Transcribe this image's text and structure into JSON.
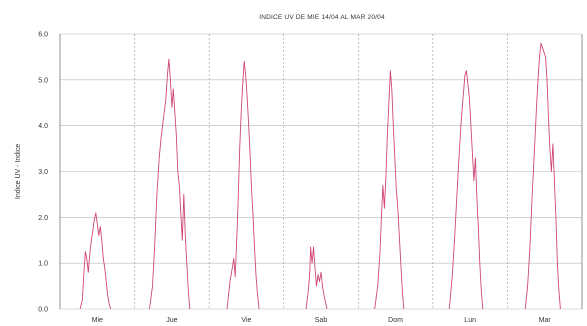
{
  "chart_data": {
    "type": "line",
    "title": "INDICE UV DE MIE 14/04 AL MAR 20/04",
    "ylabel": "Indice UV - Indice",
    "xlabel": "",
    "ylim": [
      0,
      6
    ],
    "yticks": [
      "0.0",
      "1.0",
      "2.0",
      "3.0",
      "4.0",
      "5.0",
      "6.0"
    ],
    "categories": [
      "Mie",
      "Jue",
      "Vie",
      "Sab",
      "Dom",
      "Lun",
      "Mar"
    ],
    "grid": true,
    "series_color": "#d0457a",
    "series": [
      {
        "values_by_day": [
          [
            [
              0.27,
              0
            ],
            [
              0.3,
              0.2
            ],
            [
              0.32,
              0.8
            ],
            [
              0.34,
              1.25
            ],
            [
              0.36,
              1.1
            ],
            [
              0.38,
              0.8
            ],
            [
              0.4,
              1.2
            ],
            [
              0.42,
              1.5
            ],
            [
              0.44,
              1.7
            ],
            [
              0.46,
              1.95
            ],
            [
              0.48,
              2.1
            ],
            [
              0.5,
              1.85
            ],
            [
              0.52,
              1.6
            ],
            [
              0.54,
              1.8
            ],
            [
              0.56,
              1.5
            ],
            [
              0.58,
              1.1
            ],
            [
              0.6,
              0.9
            ],
            [
              0.62,
              0.6
            ],
            [
              0.64,
              0.3
            ],
            [
              0.66,
              0.1
            ],
            [
              0.68,
              0
            ]
          ],
          [
            [
              0.2,
              0
            ],
            [
              0.24,
              0.5
            ],
            [
              0.27,
              1.4
            ],
            [
              0.3,
              2.5
            ],
            [
              0.33,
              3.3
            ],
            [
              0.36,
              3.8
            ],
            [
              0.39,
              4.2
            ],
            [
              0.42,
              4.6
            ],
            [
              0.44,
              5.1
            ],
            [
              0.46,
              5.45
            ],
            [
              0.48,
              5.0
            ],
            [
              0.5,
              4.4
            ],
            [
              0.52,
              4.8
            ],
            [
              0.54,
              4.3
            ],
            [
              0.56,
              3.8
            ],
            [
              0.58,
              3.0
            ],
            [
              0.6,
              2.7
            ],
            [
              0.62,
              2.1
            ],
            [
              0.64,
              1.5
            ],
            [
              0.66,
              2.5
            ],
            [
              0.68,
              1.6
            ],
            [
              0.7,
              1.0
            ],
            [
              0.72,
              0.4
            ],
            [
              0.74,
              0
            ]
          ],
          [
            [
              0.24,
              0
            ],
            [
              0.28,
              0.6
            ],
            [
              0.31,
              0.9
            ],
            [
              0.33,
              1.1
            ],
            [
              0.35,
              0.7
            ],
            [
              0.37,
              1.5
            ],
            [
              0.39,
              2.4
            ],
            [
              0.41,
              3.5
            ],
            [
              0.43,
              4.3
            ],
            [
              0.45,
              4.9
            ],
            [
              0.47,
              5.4
            ],
            [
              0.49,
              5.1
            ],
            [
              0.51,
              4.6
            ],
            [
              0.53,
              4.0
            ],
            [
              0.55,
              3.3
            ],
            [
              0.57,
              2.6
            ],
            [
              0.59,
              2.0
            ],
            [
              0.61,
              1.3
            ],
            [
              0.63,
              0.7
            ],
            [
              0.65,
              0.3
            ],
            [
              0.67,
              0
            ]
          ],
          [
            [
              0.3,
              0
            ],
            [
              0.33,
              0.4
            ],
            [
              0.35,
              0.8
            ],
            [
              0.36,
              1.35
            ],
            [
              0.38,
              1.0
            ],
            [
              0.4,
              1.35
            ],
            [
              0.42,
              0.9
            ],
            [
              0.44,
              0.5
            ],
            [
              0.46,
              0.75
            ],
            [
              0.48,
              0.6
            ],
            [
              0.5,
              0.8
            ],
            [
              0.52,
              0.5
            ],
            [
              0.54,
              0.3
            ],
            [
              0.56,
              0.15
            ],
            [
              0.58,
              0
            ]
          ],
          [
            [
              0.22,
              0
            ],
            [
              0.26,
              0.5
            ],
            [
              0.29,
              1.2
            ],
            [
              0.31,
              2.0
            ],
            [
              0.33,
              2.7
            ],
            [
              0.35,
              2.2
            ],
            [
              0.37,
              2.9
            ],
            [
              0.39,
              3.8
            ],
            [
              0.41,
              4.5
            ],
            [
              0.43,
              5.2
            ],
            [
              0.45,
              4.8
            ],
            [
              0.47,
              4.0
            ],
            [
              0.49,
              3.3
            ],
            [
              0.51,
              2.6
            ],
            [
              0.53,
              2.2
            ],
            [
              0.55,
              1.6
            ],
            [
              0.57,
              1.0
            ],
            [
              0.59,
              0.4
            ],
            [
              0.61,
              0
            ]
          ],
          [
            [
              0.22,
              0
            ],
            [
              0.26,
              0.7
            ],
            [
              0.29,
              1.5
            ],
            [
              0.32,
              2.4
            ],
            [
              0.35,
              3.3
            ],
            [
              0.38,
              4.1
            ],
            [
              0.41,
              4.7
            ],
            [
              0.43,
              5.1
            ],
            [
              0.45,
              5.2
            ],
            [
              0.47,
              4.9
            ],
            [
              0.49,
              4.6
            ],
            [
              0.51,
              4.0
            ],
            [
              0.53,
              3.4
            ],
            [
              0.55,
              2.8
            ],
            [
              0.57,
              3.3
            ],
            [
              0.59,
              2.4
            ],
            [
              0.61,
              1.8
            ],
            [
              0.63,
              1.0
            ],
            [
              0.65,
              0.4
            ],
            [
              0.67,
              0
            ]
          ],
          [
            [
              0.24,
              0
            ],
            [
              0.27,
              0.5
            ],
            [
              0.3,
              1.3
            ],
            [
              0.33,
              2.4
            ],
            [
              0.36,
              3.4
            ],
            [
              0.39,
              4.4
            ],
            [
              0.41,
              5.0
            ],
            [
              0.43,
              5.5
            ],
            [
              0.45,
              5.8
            ],
            [
              0.47,
              5.7
            ],
            [
              0.49,
              5.6
            ],
            [
              0.51,
              5.5
            ],
            [
              0.53,
              5.0
            ],
            [
              0.55,
              4.2
            ],
            [
              0.57,
              3.5
            ],
            [
              0.59,
              3.0
            ],
            [
              0.61,
              3.6
            ],
            [
              0.63,
              2.8
            ],
            [
              0.65,
              2.0
            ],
            [
              0.67,
              1.0
            ],
            [
              0.69,
              0.4
            ],
            [
              0.71,
              0
            ]
          ]
        ]
      }
    ]
  }
}
